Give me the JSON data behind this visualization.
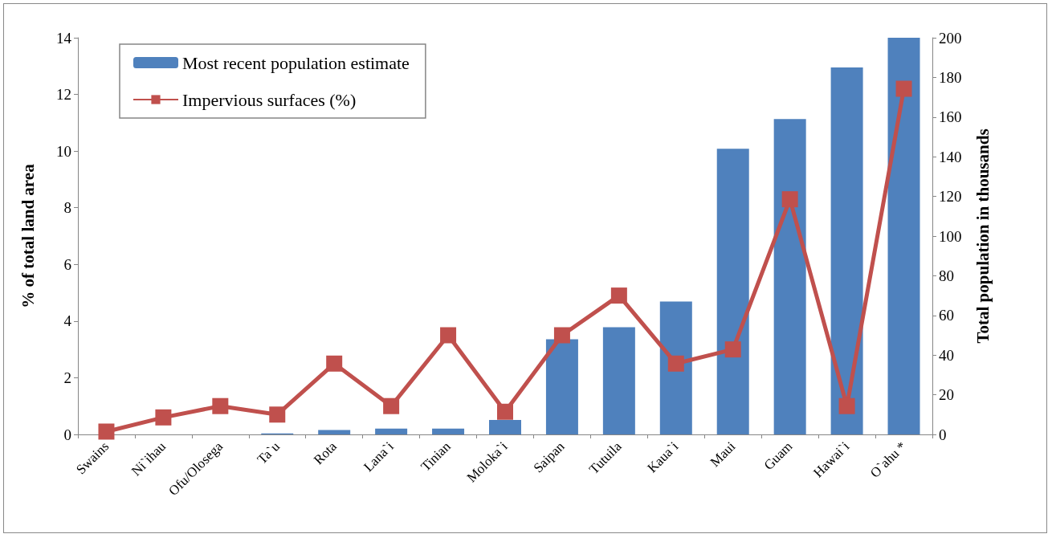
{
  "chart_data": {
    "type": "bar",
    "categories": [
      "Swains",
      "Ni`ihau",
      "Ofu/Olosega",
      "Ta`u",
      "Rota",
      "Lana`i",
      "Tinian",
      "Moloka`i",
      "Saipan",
      "Tutuila",
      "Kaua`i",
      "Maui",
      "Guam",
      "Hawai`i",
      "O`ahu *"
    ],
    "series": [
      {
        "name": "Most recent population estimate",
        "axis": "y2",
        "color": "#4f81bd",
        "values": [
          0,
          0,
          0,
          0.5,
          2.2,
          2.9,
          2.9,
          7.3,
          48,
          54,
          67,
          144,
          159,
          185,
          200
        ]
      },
      {
        "name": "Impervious surfaces (%)",
        "type": "line",
        "color": "#c0504d",
        "marker": "square",
        "values": [
          0.1,
          0.6,
          1.0,
          0.7,
          2.5,
          1.0,
          3.5,
          0.8,
          3.5,
          4.9,
          2.5,
          3.0,
          8.3,
          1.0,
          12.2
        ]
      }
    ],
    "ylabel": "% of total land area",
    "y2label": "Total population in thousands",
    "ylim": [
      0,
      14
    ],
    "yticks": [
      0,
      2,
      4,
      6,
      8,
      10,
      12,
      14
    ],
    "y2lim": [
      0,
      200
    ],
    "y2ticks": [
      0,
      20,
      40,
      60,
      80,
      100,
      120,
      140,
      160,
      180,
      200
    ],
    "grid": false,
    "legend": "top left"
  }
}
